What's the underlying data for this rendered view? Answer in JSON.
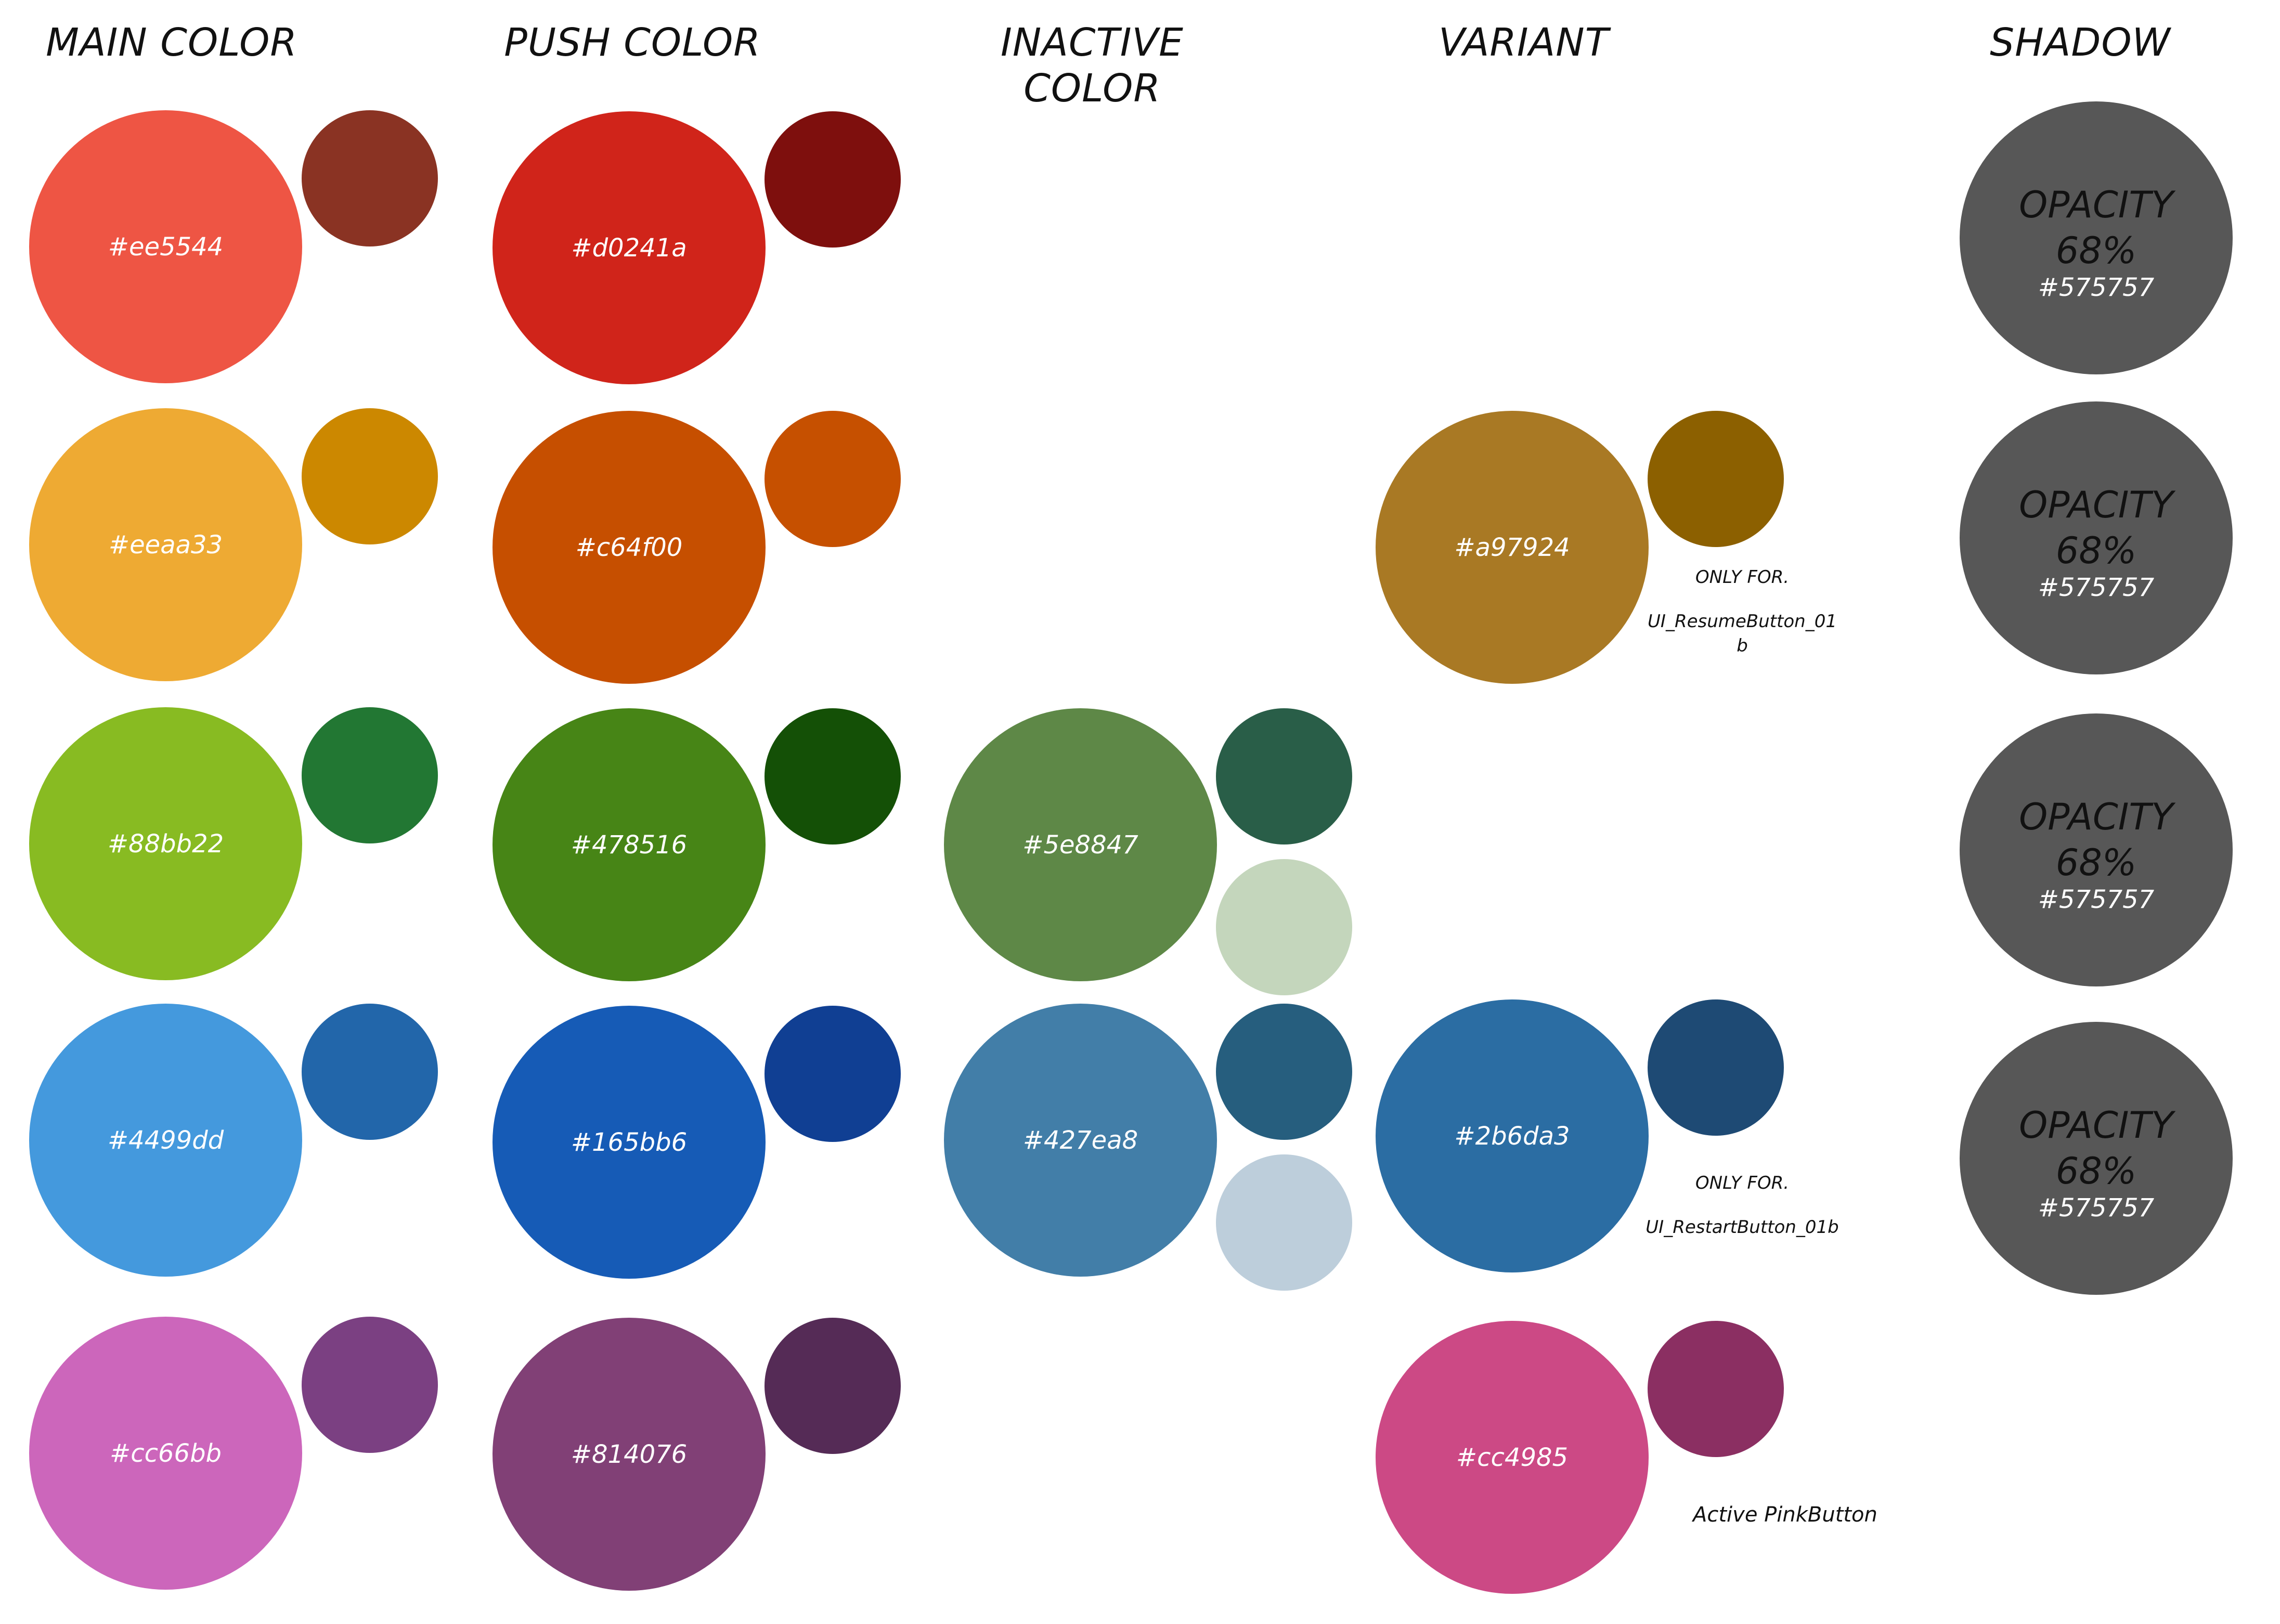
{
  "headers": {
    "main": "MAIN COLOR",
    "push": "PUSH COLOR",
    "inactive_line1": "INACTIVE",
    "inactive_line2": "COLOR",
    "variant": "VARIANT",
    "shadow": "SHADOW"
  },
  "main_colors": [
    {
      "hex": "#ee5544",
      "small": "#8a3323"
    },
    {
      "hex": "#eeaa33",
      "small": "#cc8800"
    },
    {
      "hex": "#88bb22",
      "small": "#227733"
    },
    {
      "hex": "#4499dd",
      "small": "#2266aa"
    },
    {
      "hex": "#cc66bb",
      "small": "#7b4082"
    }
  ],
  "push_colors": [
    {
      "hex": "#d0241a",
      "small": "#7e0f0d"
    },
    {
      "hex": "#c64f00",
      "small": "#c65000"
    },
    {
      "hex": "#478516",
      "small": "#145006"
    },
    {
      "hex": "#165bb6",
      "small": "#103f93"
    },
    {
      "hex": "#814076",
      "small": "#552b56"
    }
  ],
  "inactive_colors": [
    {
      "hex": "#5e8847",
      "small_top": "#295e48",
      "small_bottom": "#c4d6bc"
    },
    {
      "hex": "#427ea8",
      "small_top": "#265e7e",
      "small_bottom": "#bdcedb"
    }
  ],
  "variant_colors": [
    {
      "hex": "#a97924",
      "small": "#8c6000",
      "note_line1": "ONLY FOR.",
      "note_line2": "UI_ResumeButton_01",
      "note_line3": "b"
    },
    {
      "hex": "#2b6da3",
      "small": "#1e4a74",
      "note_line1": "ONLY FOR.",
      "note_line2": "UI_RestartButton_01b"
    },
    {
      "hex": "#cc4985",
      "small": "#8b2f62",
      "note_line1": "Active PinkButton"
    }
  ],
  "shadow": {
    "label": "OPACITY",
    "value": "68%",
    "hex": "#575757",
    "count": 4
  }
}
